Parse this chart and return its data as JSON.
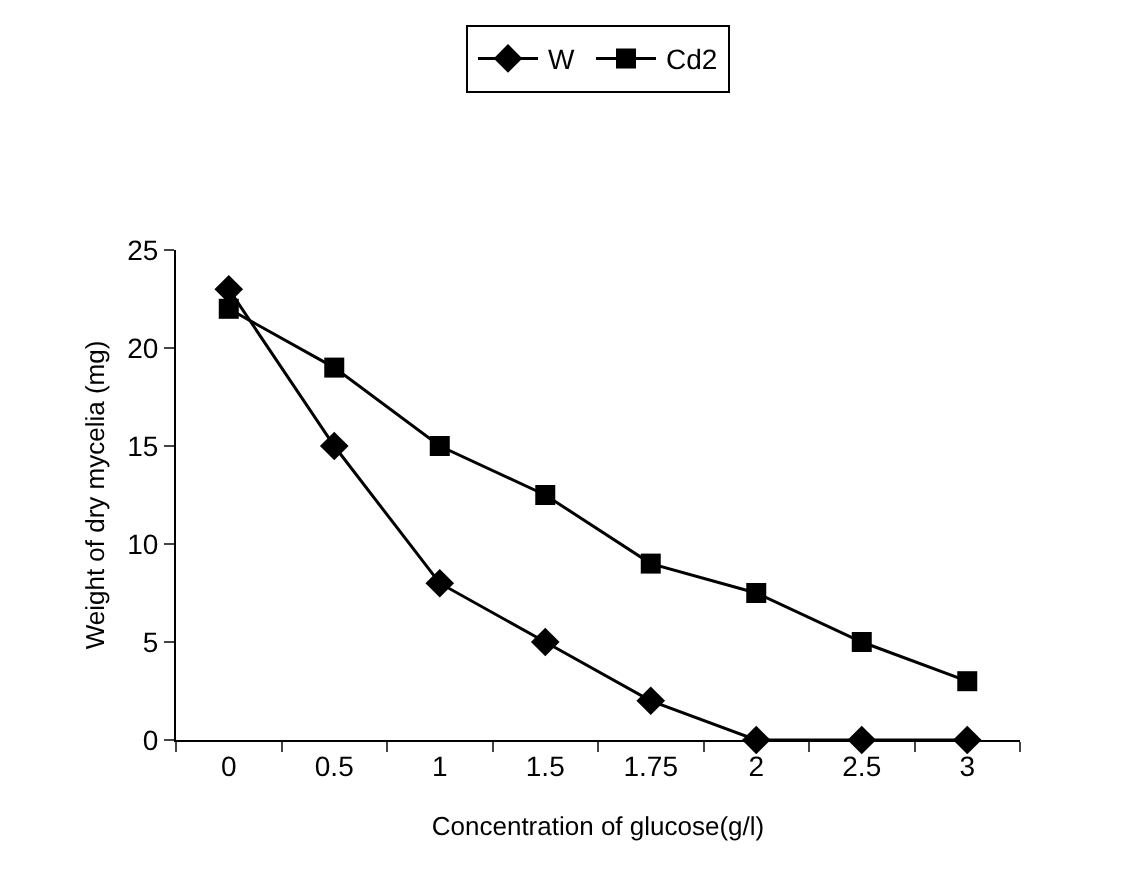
{
  "chart_data": {
    "type": "line",
    "xlabel": "Concentration of glucose(g/l)",
    "ylabel": "Weight of dry mycelia (mg)",
    "categories": [
      "0",
      "0.5",
      "1",
      "1.5",
      "1.75",
      "2",
      "2.5",
      "3"
    ],
    "series": [
      {
        "name": "W",
        "color": "#000000",
        "marker": "diamond",
        "values": [
          23,
          15,
          8,
          5,
          2,
          0,
          0,
          0
        ]
      },
      {
        "name": "Cd2",
        "color": "#000000",
        "marker": "square",
        "values": [
          22,
          19,
          15,
          12.5,
          9,
          7.5,
          5,
          3
        ]
      }
    ],
    "ylim": [
      0,
      25
    ],
    "yticks": [
      0,
      5,
      10,
      15,
      20,
      25
    ],
    "grid": false,
    "legend": "top",
    "line_style": "solid"
  }
}
